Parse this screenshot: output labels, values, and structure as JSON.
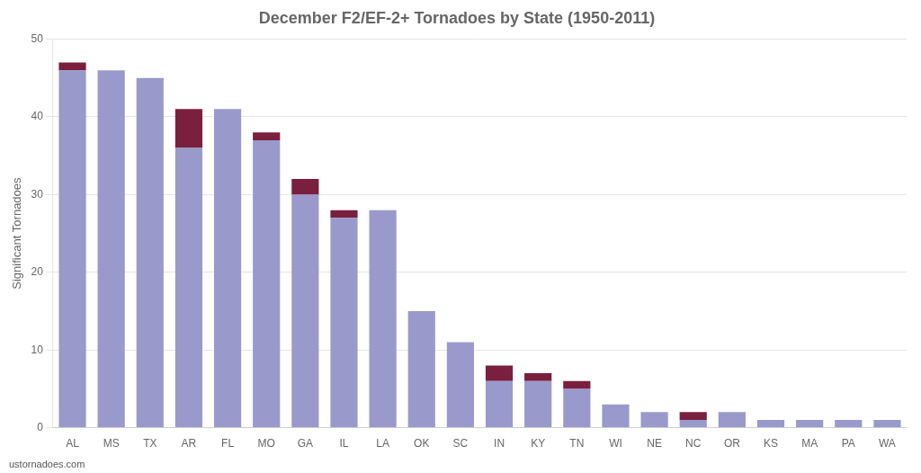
{
  "chart_data": {
    "type": "bar",
    "title": "December F2/EF-2+ Tornadoes by State (1950-2011)",
    "ylabel": "Significant Tornadoes",
    "annotations": [
      "ustornadoes.com"
    ],
    "categories": [
      "AL",
      "MS",
      "TX",
      "AR",
      "FL",
      "MO",
      "GA",
      "IL",
      "LA",
      "OK",
      "SC",
      "IN",
      "KY",
      "TN",
      "WI",
      "NE",
      "NC",
      "OR",
      "KS",
      "MA",
      "PA",
      "WA"
    ],
    "series": [
      {
        "color": "#9999cc",
        "values": [
          46,
          46,
          45,
          36,
          41,
          37,
          30,
          27,
          28,
          15,
          11,
          6,
          6,
          5,
          3,
          2,
          1,
          2,
          1,
          1,
          1,
          1
        ]
      },
      {
        "color": "#7a1f3d",
        "values": [
          1,
          0,
          0,
          5,
          0,
          1,
          2,
          1,
          0,
          0,
          0,
          2,
          1,
          1,
          0,
          0,
          1,
          0,
          0,
          0,
          0,
          0
        ]
      }
    ],
    "stacked": true,
    "ylim": [
      0,
      50
    ],
    "yticks": [
      0,
      10,
      20,
      30,
      40,
      50
    ],
    "grid": true
  }
}
